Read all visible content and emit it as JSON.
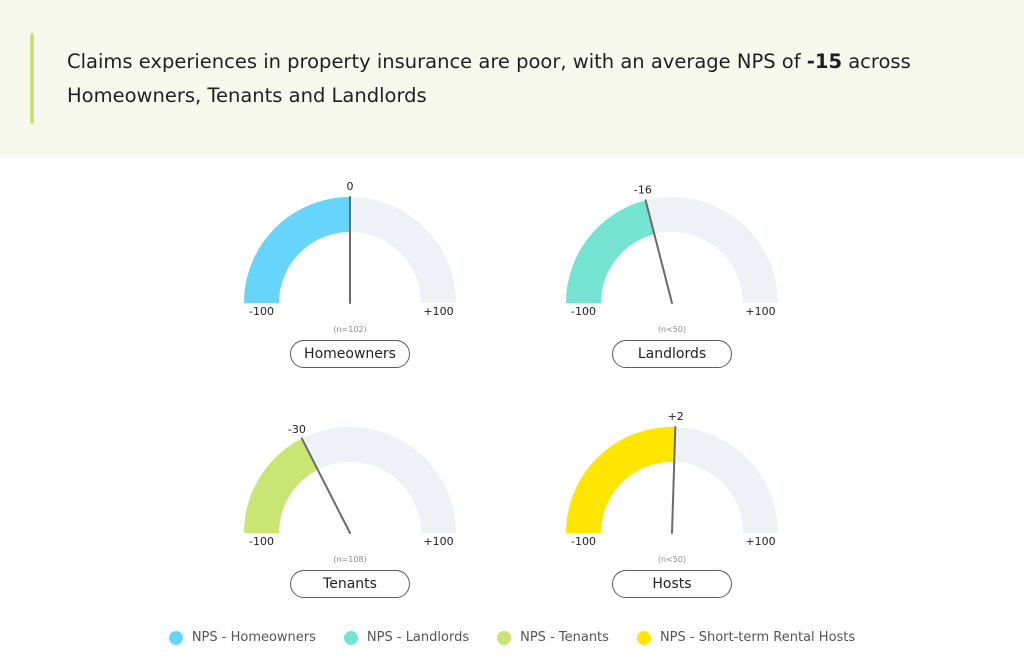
{
  "header": {
    "title_pre": "Claims experiences in property insurance are poor, with an average NPS of ",
    "title_bold": "-15",
    "title_post": " across Homeowners, Tenants and Landlords"
  },
  "colors": {
    "track": "#eef2f7",
    "needle": "#6b6b6b",
    "header_bg": "#f7f9ee",
    "accent": "#c8e27a"
  },
  "chart_data": [
    {
      "type": "gauge",
      "name": "Homeowners",
      "value": 0,
      "value_label": "0",
      "min": -100,
      "max": 100,
      "min_label": "-100",
      "max_label": "+100",
      "sample": "(n=102)",
      "color": "#66d4fb"
    },
    {
      "type": "gauge",
      "name": "Landlords",
      "value": -16,
      "value_label": "-16",
      "min": -100,
      "max": 100,
      "min_label": "-100",
      "max_label": "+100",
      "sample": "(n<50)",
      "color": "#74e3d1"
    },
    {
      "type": "gauge",
      "name": "Tenants",
      "value": -30,
      "value_label": "-30",
      "min": -100,
      "max": 100,
      "min_label": "-100",
      "max_label": "+100",
      "sample": "(n=108)",
      "color": "#c9e573"
    },
    {
      "type": "gauge",
      "name": "Hosts",
      "value": 2,
      "value_label": "+2",
      "min": -100,
      "max": 100,
      "min_label": "-100",
      "max_label": "+100",
      "sample": "(n<50)",
      "color": "#ffe500"
    }
  ],
  "legend": [
    {
      "label": "NPS - Homeowners",
      "color": "#66d4fb"
    },
    {
      "label": "NPS - Landlords",
      "color": "#74e3d1"
    },
    {
      "label": "NPS - Tenants",
      "color": "#c9e573"
    },
    {
      "label": "NPS - Short-term Rental Hosts",
      "color": "#ffe500"
    }
  ]
}
